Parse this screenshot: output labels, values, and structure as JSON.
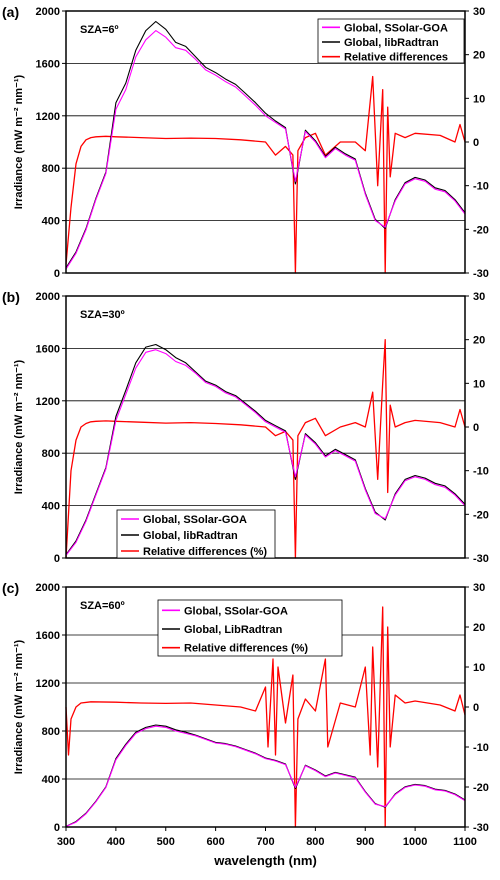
{
  "chart_data": [
    {
      "type": "line",
      "panel_label": "(a)",
      "annotation": "SZA=6º",
      "ylabel_left": "Irradiance (mW m⁻² nm⁻¹)",
      "xlim": [
        300,
        1100
      ],
      "ylim_left": [
        0,
        2000
      ],
      "ylim_right": [
        -30,
        30
      ],
      "left_ticks": [
        "0",
        "400",
        "800",
        "1200",
        "1600",
        "2000"
      ],
      "right_ticks": [
        "-30",
        "-20",
        "-10",
        "0",
        "10",
        "20",
        "30"
      ],
      "legend_position": "top-right",
      "legend_entries": [
        "Global, SSolar-GOA",
        "Global, libRadtran",
        "Relative differences"
      ],
      "colors": {
        "ssolar": "#ff00ff",
        "libradtran": "#000000",
        "reldiff": "#ff0000"
      },
      "series": [
        {
          "name": "Global, SSolar-GOA",
          "axis": "left",
          "x": [
            300,
            320,
            340,
            360,
            380,
            400,
            420,
            440,
            460,
            480,
            500,
            520,
            540,
            560,
            580,
            600,
            620,
            640,
            660,
            680,
            700,
            720,
            740,
            760,
            780,
            800,
            820,
            840,
            860,
            880,
            900,
            920,
            940,
            960,
            980,
            1000,
            1020,
            1040,
            1060,
            1080,
            1100
          ],
          "y": [
            30,
            150,
            330,
            560,
            760,
            1250,
            1400,
            1650,
            1780,
            1850,
            1800,
            1720,
            1700,
            1630,
            1550,
            1510,
            1460,
            1420,
            1350,
            1280,
            1200,
            1150,
            1100,
            700,
            1080,
            1000,
            880,
            950,
            900,
            860,
            600,
            400,
            350,
            550,
            680,
            720,
            700,
            640,
            620,
            550,
            450
          ]
        },
        {
          "name": "Global, libRadtran",
          "axis": "left",
          "x": [
            300,
            320,
            340,
            360,
            380,
            400,
            420,
            440,
            460,
            480,
            500,
            520,
            540,
            560,
            580,
            600,
            620,
            640,
            660,
            680,
            700,
            720,
            740,
            760,
            780,
            800,
            820,
            840,
            860,
            880,
            900,
            920,
            940,
            960,
            980,
            1000,
            1020,
            1040,
            1060,
            1080,
            1100
          ],
          "y": [
            40,
            160,
            340,
            570,
            770,
            1300,
            1450,
            1700,
            1850,
            1920,
            1860,
            1760,
            1730,
            1650,
            1570,
            1530,
            1480,
            1440,
            1370,
            1300,
            1220,
            1160,
            1110,
            680,
            1090,
            1010,
            890,
            960,
            910,
            870,
            610,
            410,
            340,
            560,
            690,
            730,
            710,
            650,
            630,
            560,
            460
          ]
        },
        {
          "name": "Relative differences",
          "axis": "right",
          "x": [
            300,
            310,
            320,
            330,
            340,
            350,
            360,
            380,
            400,
            450,
            500,
            550,
            600,
            650,
            700,
            720,
            740,
            755,
            760,
            765,
            780,
            800,
            820,
            850,
            880,
            900,
            915,
            925,
            935,
            940,
            945,
            950,
            960,
            980,
            1000,
            1050,
            1080,
            1090,
            1100
          ],
          "y": [
            -28,
            -15,
            -5,
            -1,
            0.5,
            1,
            1.2,
            1.3,
            1.2,
            1.0,
            0.8,
            0.9,
            0.8,
            0.5,
            0,
            -3,
            -1,
            -3,
            -30,
            -2,
            1,
            2,
            -3,
            0,
            0,
            -2,
            15,
            -10,
            12,
            -30,
            8,
            -8,
            2,
            1,
            2,
            1.5,
            0,
            4,
            0
          ]
        }
      ]
    },
    {
      "type": "line",
      "panel_label": "(b)",
      "annotation": "SZA=30º",
      "ylabel_left": "Irradiance (mW m⁻² nm⁻¹)",
      "xlim": [
        300,
        1100
      ],
      "ylim_left": [
        0,
        2000
      ],
      "ylim_right": [
        -30,
        30
      ],
      "left_ticks": [
        "0",
        "400",
        "800",
        "1200",
        "1600",
        "2000"
      ],
      "right_ticks": [
        "-30",
        "-20",
        "-10",
        "0",
        "10",
        "20",
        "30"
      ],
      "legend_position": "bottom-left",
      "legend_entries": [
        "Global, SSolar-GOA",
        "Global, libRadtran",
        "Relative differences (%)"
      ],
      "colors": {
        "ssolar": "#ff00ff",
        "libradtran": "#000000",
        "reldiff": "#ff0000"
      },
      "series": [
        {
          "name": "Global, SSolar-GOA",
          "axis": "left",
          "x": [
            300,
            320,
            340,
            360,
            380,
            400,
            420,
            440,
            460,
            480,
            500,
            520,
            540,
            560,
            580,
            600,
            620,
            640,
            660,
            680,
            700,
            720,
            740,
            760,
            780,
            800,
            820,
            840,
            860,
            880,
            900,
            920,
            940,
            960,
            980,
            1000,
            1020,
            1040,
            1060,
            1080,
            1100
          ],
          "y": [
            20,
            120,
            280,
            480,
            680,
            1050,
            1250,
            1450,
            1570,
            1590,
            1560,
            1500,
            1470,
            1410,
            1340,
            1310,
            1260,
            1230,
            1170,
            1110,
            1040,
            1000,
            960,
            620,
            940,
            870,
            770,
            820,
            780,
            740,
            520,
            340,
            300,
            480,
            590,
            620,
            600,
            560,
            540,
            480,
            400
          ]
        },
        {
          "name": "Global, libRadtran",
          "axis": "left",
          "x": [
            300,
            320,
            340,
            360,
            380,
            400,
            420,
            440,
            460,
            480,
            500,
            520,
            540,
            560,
            580,
            600,
            620,
            640,
            660,
            680,
            700,
            720,
            740,
            760,
            780,
            800,
            820,
            840,
            860,
            880,
            900,
            920,
            940,
            960,
            980,
            1000,
            1020,
            1040,
            1060,
            1080,
            1100
          ],
          "y": [
            25,
            130,
            290,
            490,
            690,
            1080,
            1280,
            1490,
            1610,
            1630,
            1590,
            1530,
            1490,
            1420,
            1350,
            1320,
            1270,
            1240,
            1180,
            1120,
            1050,
            1010,
            970,
            600,
            950,
            880,
            780,
            830,
            790,
            750,
            530,
            350,
            290,
            490,
            600,
            630,
            610,
            570,
            550,
            490,
            410
          ]
        },
        {
          "name": "Relative differences (%)",
          "axis": "right",
          "x": [
            300,
            310,
            320,
            330,
            340,
            350,
            360,
            380,
            400,
            450,
            500,
            550,
            600,
            650,
            700,
            720,
            740,
            755,
            760,
            765,
            780,
            800,
            820,
            850,
            880,
            900,
            915,
            925,
            935,
            940,
            945,
            950,
            960,
            980,
            1000,
            1050,
            1080,
            1090,
            1100
          ],
          "y": [
            -30,
            -10,
            -3,
            0,
            0.8,
            1.2,
            1.3,
            1.4,
            1.3,
            1.1,
            0.9,
            1.0,
            0.8,
            0.5,
            0,
            -2,
            -1,
            -3,
            -30,
            -2,
            1,
            2,
            -2,
            0,
            1,
            0,
            8,
            -12,
            10,
            20,
            -15,
            5,
            0,
            1,
            1.5,
            1,
            0,
            4,
            0
          ]
        }
      ]
    },
    {
      "type": "line",
      "panel_label": "(c)",
      "annotation": "SZA=60º",
      "ylabel_left": "Irradiance (mW m⁻² nm⁻¹)",
      "xlabel": "wavelength (nm)",
      "xlim": [
        300,
        1100
      ],
      "ylim_left": [
        0,
        2000
      ],
      "ylim_right": [
        -30,
        30
      ],
      "left_ticks": [
        "0",
        "400",
        "800",
        "1200",
        "1600",
        "2000"
      ],
      "right_ticks": [
        "-30",
        "-20",
        "-10",
        "0",
        "10",
        "20",
        "30"
      ],
      "x_ticks": [
        "300",
        "400",
        "500",
        "600",
        "700",
        "800",
        "900",
        "1000",
        "1100"
      ],
      "legend_position": "top",
      "legend_entries": [
        "Global, SSolar-GOA",
        "Global, LibRadtran",
        "Relative differences (%)"
      ],
      "colors": {
        "ssolar": "#ff00ff",
        "libradtran": "#000000",
        "reldiff": "#ff0000"
      },
      "series": [
        {
          "name": "Global, SSolar-GOA",
          "axis": "left",
          "x": [
            300,
            320,
            340,
            360,
            380,
            400,
            420,
            440,
            460,
            480,
            500,
            520,
            540,
            560,
            580,
            600,
            620,
            640,
            660,
            680,
            700,
            720,
            740,
            760,
            780,
            800,
            820,
            840,
            860,
            880,
            900,
            920,
            940,
            960,
            980,
            1000,
            1020,
            1040,
            1060,
            1080,
            1100
          ],
          "y": [
            5,
            40,
            110,
            210,
            330,
            560,
            680,
            780,
            820,
            840,
            830,
            800,
            780,
            760,
            730,
            700,
            690,
            670,
            640,
            610,
            570,
            550,
            520,
            330,
            510,
            470,
            420,
            450,
            430,
            410,
            290,
            190,
            170,
            270,
            330,
            350,
            340,
            310,
            300,
            270,
            220
          ]
        },
        {
          "name": "Global, LibRadtran",
          "axis": "left",
          "x": [
            300,
            320,
            340,
            360,
            380,
            400,
            420,
            440,
            460,
            480,
            500,
            520,
            540,
            560,
            580,
            600,
            620,
            640,
            660,
            680,
            700,
            720,
            740,
            760,
            780,
            800,
            820,
            840,
            860,
            880,
            900,
            920,
            940,
            960,
            980,
            1000,
            1020,
            1040,
            1060,
            1080,
            1100
          ],
          "y": [
            5,
            45,
            115,
            215,
            335,
            570,
            690,
            790,
            830,
            850,
            840,
            810,
            790,
            765,
            735,
            705,
            695,
            675,
            645,
            615,
            575,
            555,
            525,
            320,
            515,
            475,
            425,
            455,
            435,
            415,
            295,
            195,
            165,
            275,
            335,
            355,
            345,
            315,
            305,
            275,
            225
          ]
        },
        {
          "name": "Relative differences (%)",
          "axis": "right",
          "x": [
            300,
            305,
            310,
            320,
            330,
            350,
            400,
            450,
            500,
            550,
            600,
            650,
            680,
            700,
            705,
            715,
            720,
            725,
            740,
            755,
            760,
            765,
            780,
            800,
            820,
            825,
            850,
            880,
            900,
            910,
            915,
            925,
            935,
            940,
            945,
            950,
            960,
            980,
            1000,
            1050,
            1080,
            1090,
            1100
          ],
          "y": [
            0,
            -12,
            -3,
            0,
            1,
            1.3,
            1.2,
            1.0,
            0.9,
            1.0,
            0.5,
            0,
            -1,
            5,
            -10,
            12,
            -12,
            10,
            -4,
            8,
            -30,
            -3,
            2,
            -1,
            12,
            -10,
            1,
            0,
            10,
            -12,
            15,
            -15,
            25,
            -30,
            20,
            -10,
            3,
            1,
            1.5,
            0.5,
            -1,
            3,
            -2
          ]
        }
      ]
    }
  ]
}
